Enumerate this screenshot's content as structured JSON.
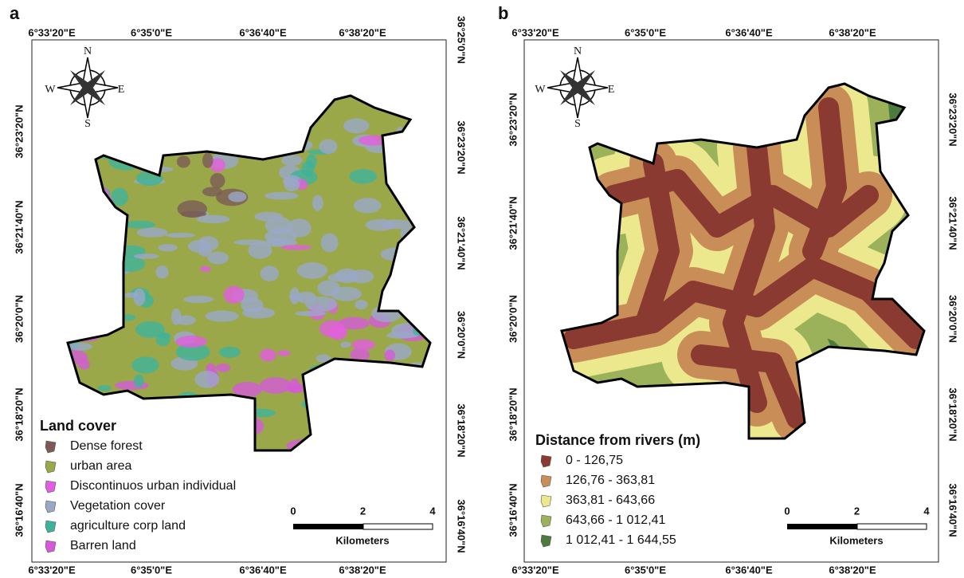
{
  "panels": [
    {
      "label": "a",
      "top_ticks": [
        "6°33'20\"E",
        "6°35'0\"E",
        "6°36'40\"E",
        "6°38'20\"E"
      ],
      "bottom_ticks": [
        "6°33'20\"E",
        "6°35'0\"E",
        "6°36'40\"E",
        "6°38'20\"E"
      ],
      "left_ticks": [
        "36°23'20\"N",
        "36°21'40\"N",
        "36°20'0\"N",
        "36°18'20\"N",
        "36°16'40\"N"
      ],
      "right_ticks": [
        "36°25'0\"N",
        "36°23'20\"N",
        "36°21'40\"N",
        "36°20'0\"N",
        "36°18'20\"N",
        "36°16'40\"N"
      ],
      "compass": {
        "n": "N",
        "s": "S",
        "e": "E",
        "w": "W"
      },
      "legend": {
        "title": "Land cover",
        "items": [
          {
            "label": "Dense forest",
            "color": "#7a5c55"
          },
          {
            "label": "urban area",
            "color": "#9aa84a"
          },
          {
            "label": "Discontinuos urban individual",
            "color": "#e25ee0"
          },
          {
            "label": "Vegetation cover",
            "color": "#9aa8c8"
          },
          {
            "label": "agriculture corp land",
            "color": "#3fb39a"
          },
          {
            "label": "Barren land",
            "color": "#d65ad8"
          }
        ]
      },
      "scale_bar": {
        "ticks": [
          "0",
          "2",
          "4"
        ],
        "unit": "Kilometers"
      }
    },
    {
      "label": "b",
      "top_ticks": [
        "6°33'20\"E",
        "6°35'0\"E",
        "6°36'40\"E",
        "6°38'20\"E"
      ],
      "bottom_ticks": [
        "6°33'20\"E",
        "6°35'0\"E",
        "6°36'40\"E",
        "6°38'20\"E"
      ],
      "left_ticks": [
        "36°23'20\"N",
        "36°21'40\"N",
        "36°20'0\"N",
        "36°18'20\"N",
        "36°16'40\"N"
      ],
      "right_ticks": [
        "36°23'20\"N",
        "36°21'40\"N",
        "36°20'0\"N",
        "36°18'20\"N",
        "36°16'40\"N"
      ],
      "compass": {
        "n": "N",
        "s": "S",
        "e": "E",
        "w": "W"
      },
      "legend": {
        "title": "Distance from rivers (m)",
        "items": [
          {
            "label": "0 - 126,75",
            "color": "#8a3a30"
          },
          {
            "label": "126,76 - 363,81",
            "color": "#c98e58"
          },
          {
            "label": "363,81 - 643,66",
            "color": "#ece88e"
          },
          {
            "label": "643,66  - 1 012,41",
            "color": "#9bb25a"
          },
          {
            "label": "1 012,41  - 1 644,55",
            "color": "#4d7a3e"
          }
        ]
      },
      "scale_bar": {
        "ticks": [
          "0",
          "2",
          "4"
        ],
        "unit": "Kilometers"
      }
    }
  ]
}
